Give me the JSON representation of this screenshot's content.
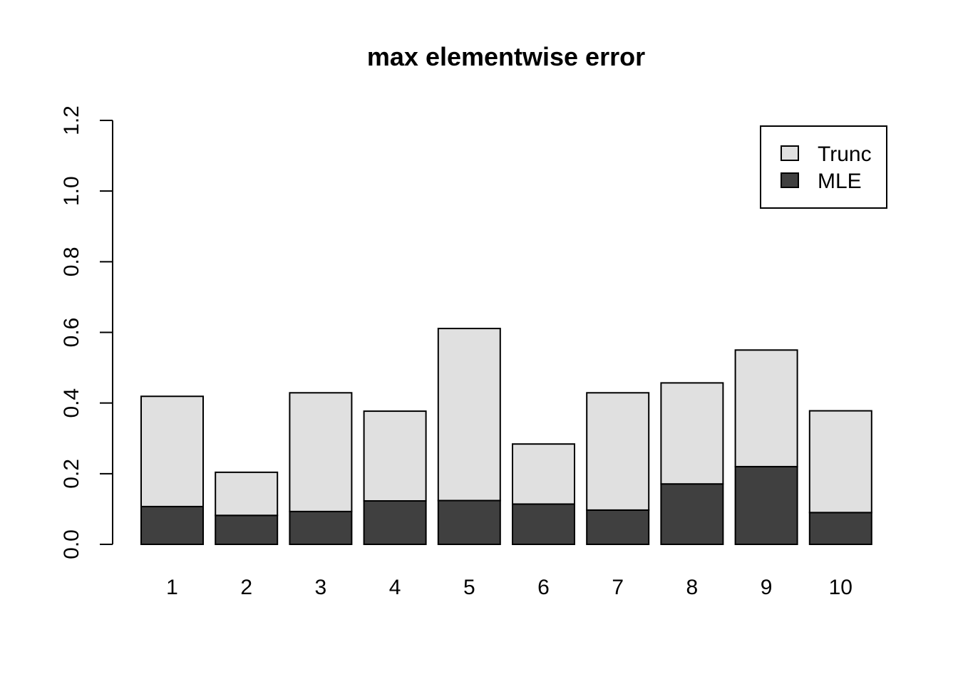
{
  "chart_data": {
    "type": "bar",
    "stacked": true,
    "title": "max elementwise error",
    "xlabel": "",
    "ylabel": "",
    "categories": [
      "1",
      "2",
      "3",
      "4",
      "5",
      "6",
      "7",
      "8",
      "9",
      "10"
    ],
    "series": [
      {
        "name": "MLE",
        "color": "#404040",
        "values": [
          0.107,
          0.082,
          0.093,
          0.123,
          0.124,
          0.114,
          0.097,
          0.171,
          0.22,
          0.09
        ]
      },
      {
        "name": "Trunc",
        "color": "#e0e0e0",
        "values": [
          0.312,
          0.122,
          0.336,
          0.254,
          0.487,
          0.17,
          0.332,
          0.286,
          0.33,
          0.288
        ]
      }
    ],
    "totals": [
      0.419,
      0.204,
      0.429,
      0.377,
      0.611,
      0.284,
      0.429,
      0.457,
      0.55,
      0.378
    ],
    "ylim": [
      0,
      1.2
    ],
    "yticks": [
      "0.0",
      "0.2",
      "0.4",
      "0.6",
      "0.8",
      "1.0",
      "1.2"
    ],
    "ytick_values": [
      0,
      0.2,
      0.4,
      0.6,
      0.8,
      1.0,
      1.2
    ],
    "grid": false,
    "legend": {
      "position": "top-right",
      "entries": [
        {
          "label": "Trunc",
          "color": "#e0e0e0"
        },
        {
          "label": "MLE",
          "color": "#404040"
        }
      ]
    }
  }
}
